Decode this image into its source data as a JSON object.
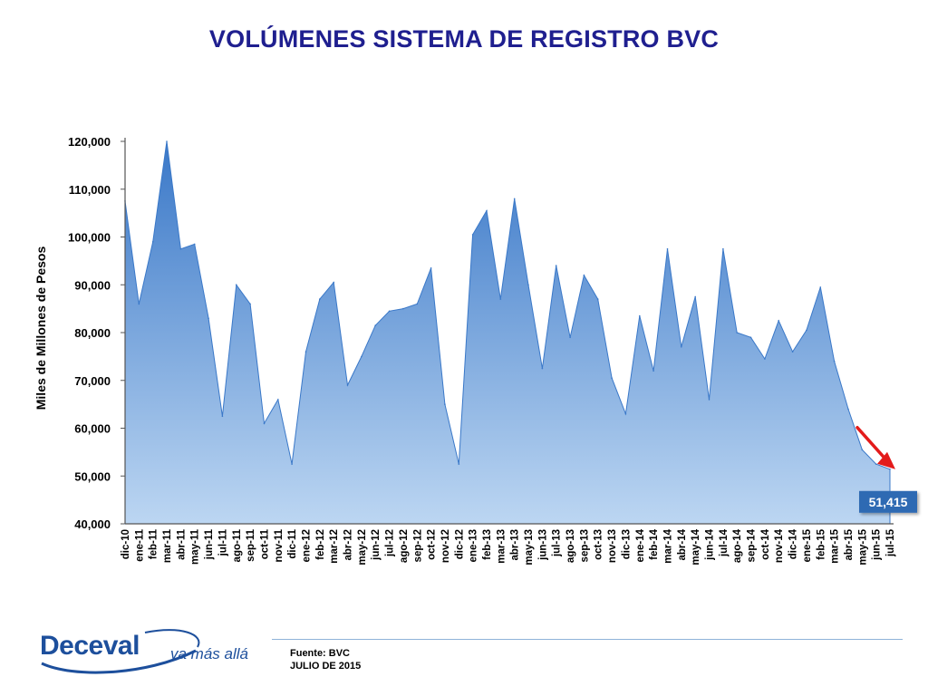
{
  "slide": {
    "title": "VOLÚMENES SISTEMA DE REGISTRO BVC",
    "source_line1": "Fuente: BVC",
    "source_line2": "JULIO DE 2015",
    "logo_text": "Deceval",
    "logo_tagline": "va más allá"
  },
  "colors": {
    "title": "#1f1f8f",
    "area_top": "#3a78c8",
    "area_bottom": "#bcd6f2",
    "arrow": "#e31b1b",
    "callout_bg": "#2f6ab3",
    "brand": "#1d4f9c"
  },
  "chart_data": {
    "type": "area",
    "title": "",
    "xlabel": "",
    "ylabel": "Miles de Millones de Pesos",
    "ylim": [
      40000,
      120000
    ],
    "yticks": [
      40000,
      50000,
      60000,
      70000,
      80000,
      90000,
      100000,
      110000,
      120000
    ],
    "ytick_labels": [
      "40,000",
      "50,000",
      "60,000",
      "70,000",
      "80,000",
      "90,000",
      "100,000",
      "110,000",
      "120,000"
    ],
    "categories": [
      "dic-10",
      "ene-11",
      "feb-11",
      "mar-11",
      "abr-11",
      "may-11",
      "jun-11",
      "jul-11",
      "ago-11",
      "sep-11",
      "oct-11",
      "nov-11",
      "dic-11",
      "ene-12",
      "feb-12",
      "mar-12",
      "abr-12",
      "may-12",
      "jun-12",
      "jul-12",
      "ago-12",
      "sep-12",
      "oct-12",
      "nov-12",
      "dic-12",
      "ene-13",
      "feb-13",
      "mar-13",
      "abr-13",
      "may-13",
      "jun-13",
      "jul-13",
      "ago-13",
      "sep-13",
      "oct-13",
      "nov-13",
      "dic-13",
      "ene-14",
      "feb-14",
      "mar-14",
      "abr-14",
      "may-14",
      "jun-14",
      "jul-14",
      "ago-14",
      "sep-14",
      "oct-14",
      "nov-14",
      "dic-14",
      "ene-15",
      "feb-15",
      "mar-15",
      "abr-15",
      "may-15",
      "jun-15",
      "jul-15"
    ],
    "values": [
      107500,
      86000,
      99000,
      120000,
      97500,
      98500,
      83000,
      62500,
      90000,
      86000,
      61000,
      66000,
      52500,
      76000,
      87000,
      90500,
      69000,
      75000,
      81500,
      84500,
      85000,
      86000,
      93500,
      65000,
      52500,
      100500,
      105500,
      87000,
      108000,
      90000,
      72500,
      94000,
      79000,
      92000,
      87000,
      70500,
      63000,
      83500,
      72000,
      97500,
      77000,
      87500,
      66000,
      97500,
      80000,
      79000,
      74500,
      82500,
      76000,
      80500,
      89500,
      74000,
      64000,
      55500,
      52500,
      51415
    ],
    "annotation": {
      "category": "jul-15",
      "label": "51,415"
    },
    "grid": false,
    "legend": "none"
  }
}
